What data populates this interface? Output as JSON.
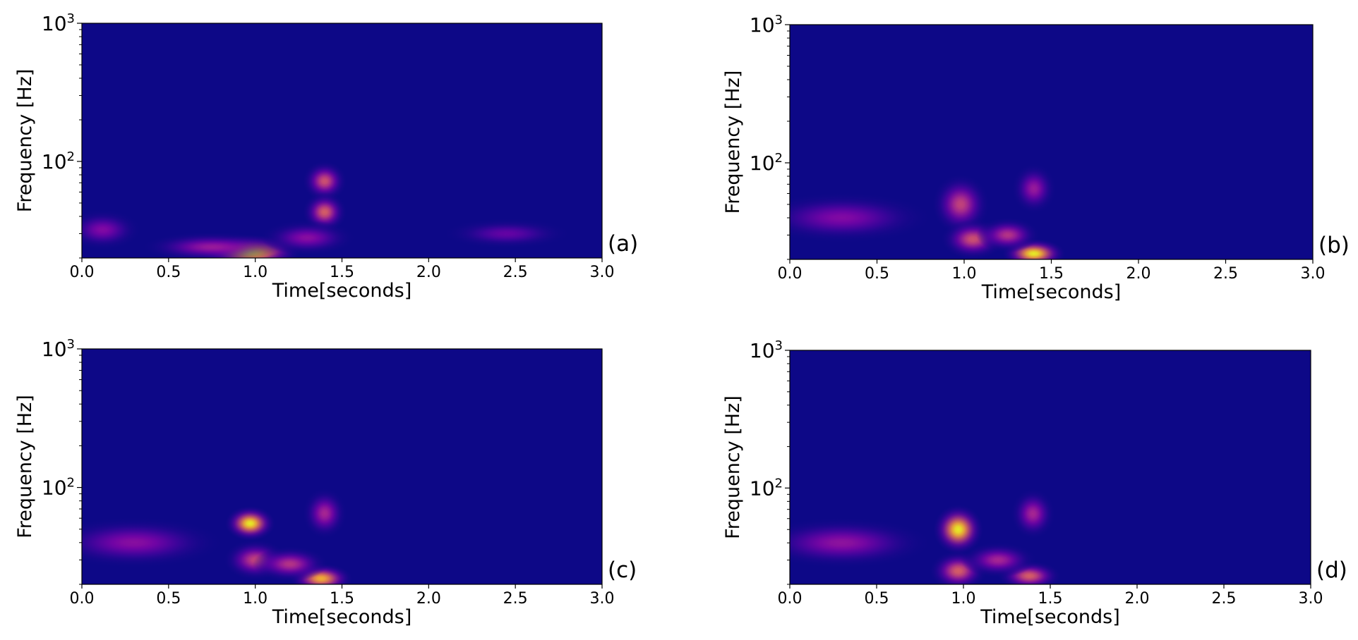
{
  "chart_data": [
    {
      "type": "heatmap",
      "panel_label": "(a)",
      "xlabel": "Time[seconds]",
      "ylabel": "Frequency [Hz]",
      "xlim": [
        0.0,
        3.0
      ],
      "ylim": [
        20,
        1000
      ],
      "y_scale": "log",
      "x_ticks": [
        "0.0",
        "0.5",
        "1.0",
        "1.5",
        "2.0",
        "2.5",
        "3.0"
      ],
      "y_ticks": [
        {
          "base": "10",
          "exp": "2",
          "value": 100
        },
        {
          "base": "10",
          "exp": "3",
          "value": 1000
        }
      ],
      "colormap": "plasma",
      "background_color": "#0d0887",
      "blobs": [
        {
          "t": 0.12,
          "f": 32,
          "intensity": 0.28,
          "st": 0.12,
          "sf": 0.08
        },
        {
          "t": 0.97,
          "f": 22,
          "intensity": 1.0,
          "st": 0.16,
          "sf": 0.07
        },
        {
          "t": 0.75,
          "f": 24,
          "intensity": 0.35,
          "st": 0.22,
          "sf": 0.06
        },
        {
          "t": 1.4,
          "f": 72,
          "intensity": 0.55,
          "st": 0.07,
          "sf": 0.08
        },
        {
          "t": 1.4,
          "f": 43,
          "intensity": 0.6,
          "st": 0.07,
          "sf": 0.08
        },
        {
          "t": 1.3,
          "f": 28,
          "intensity": 0.3,
          "st": 0.15,
          "sf": 0.07
        },
        {
          "t": 2.45,
          "f": 30,
          "intensity": 0.2,
          "st": 0.2,
          "sf": 0.06
        }
      ]
    },
    {
      "type": "heatmap",
      "panel_label": "(b)",
      "xlabel": "Time[seconds]",
      "ylabel": "Frequency [Hz]",
      "xlim": [
        0.0,
        3.0
      ],
      "ylim": [
        20,
        1000
      ],
      "y_scale": "log",
      "x_ticks": [
        "0.0",
        "0.5",
        "1.0",
        "1.5",
        "2.0",
        "2.5",
        "3.0"
      ],
      "y_ticks": [
        {
          "base": "10",
          "exp": "2",
          "value": 100
        },
        {
          "base": "10",
          "exp": "3",
          "value": 1000
        }
      ],
      "colormap": "plasma",
      "background_color": "#0d0887",
      "blobs": [
        {
          "t": 0.3,
          "f": 40,
          "intensity": 0.28,
          "st": 0.28,
          "sf": 0.1
        },
        {
          "t": 0.98,
          "f": 50,
          "intensity": 0.5,
          "st": 0.09,
          "sf": 0.12
        },
        {
          "t": 1.05,
          "f": 28,
          "intensity": 0.55,
          "st": 0.1,
          "sf": 0.08
        },
        {
          "t": 1.4,
          "f": 22,
          "intensity": 1.0,
          "st": 0.1,
          "sf": 0.06
        },
        {
          "t": 1.4,
          "f": 65,
          "intensity": 0.35,
          "st": 0.07,
          "sf": 0.1
        },
        {
          "t": 1.25,
          "f": 30,
          "intensity": 0.45,
          "st": 0.1,
          "sf": 0.07
        }
      ]
    },
    {
      "type": "heatmap",
      "panel_label": "(c)",
      "xlabel": "Time[seconds]",
      "ylabel": "Frequency [Hz]",
      "xlim": [
        0.0,
        3.0
      ],
      "ylim": [
        20,
        1000
      ],
      "y_scale": "log",
      "x_ticks": [
        "0.0",
        "0.5",
        "1.0",
        "1.5",
        "2.0",
        "2.5",
        "3.0"
      ],
      "y_ticks": [
        {
          "base": "10",
          "exp": "2",
          "value": 100
        },
        {
          "base": "10",
          "exp": "3",
          "value": 1000
        }
      ],
      "colormap": "plasma",
      "background_color": "#0d0887",
      "blobs": [
        {
          "t": 0.3,
          "f": 40,
          "intensity": 0.3,
          "st": 0.28,
          "sf": 0.1
        },
        {
          "t": 0.97,
          "f": 55,
          "intensity": 1.0,
          "st": 0.08,
          "sf": 0.07
        },
        {
          "t": 1.0,
          "f": 30,
          "intensity": 0.5,
          "st": 0.1,
          "sf": 0.08
        },
        {
          "t": 1.38,
          "f": 22,
          "intensity": 0.85,
          "st": 0.1,
          "sf": 0.06
        },
        {
          "t": 1.4,
          "f": 65,
          "intensity": 0.4,
          "st": 0.07,
          "sf": 0.1
        },
        {
          "t": 1.2,
          "f": 28,
          "intensity": 0.45,
          "st": 0.12,
          "sf": 0.07
        }
      ]
    },
    {
      "type": "heatmap",
      "panel_label": "(d)",
      "xlabel": "Time[seconds]",
      "ylabel": "Frequency [Hz]",
      "xlim": [
        0.0,
        3.0
      ],
      "ylim": [
        20,
        1000
      ],
      "y_scale": "log",
      "x_ticks": [
        "0.0",
        "0.5",
        "1.0",
        "1.5",
        "2.0",
        "2.5",
        "3.0"
      ],
      "y_ticks": [
        {
          "base": "10",
          "exp": "2",
          "value": 100
        },
        {
          "base": "10",
          "exp": "3",
          "value": 1000
        }
      ],
      "colormap": "plasma",
      "background_color": "#0d0887",
      "blobs": [
        {
          "t": 0.3,
          "f": 40,
          "intensity": 0.32,
          "st": 0.28,
          "sf": 0.1
        },
        {
          "t": 0.97,
          "f": 50,
          "intensity": 1.0,
          "st": 0.08,
          "sf": 0.1
        },
        {
          "t": 0.97,
          "f": 25,
          "intensity": 0.6,
          "st": 0.09,
          "sf": 0.08
        },
        {
          "t": 1.38,
          "f": 23,
          "intensity": 0.6,
          "st": 0.1,
          "sf": 0.06
        },
        {
          "t": 1.4,
          "f": 65,
          "intensity": 0.4,
          "st": 0.07,
          "sf": 0.1
        },
        {
          "t": 1.2,
          "f": 30,
          "intensity": 0.4,
          "st": 0.12,
          "sf": 0.07
        }
      ]
    }
  ]
}
